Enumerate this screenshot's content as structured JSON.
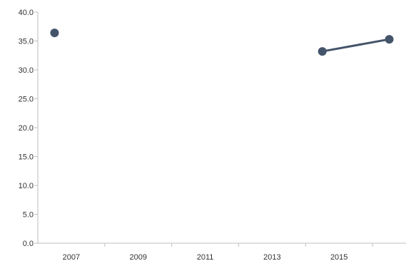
{
  "chart_data": {
    "type": "line",
    "title": "",
    "xlabel": "",
    "ylabel": "",
    "xlim": [
      2006,
      2017
    ],
    "ylim": [
      0,
      40
    ],
    "x_ticks": [
      "2007",
      "2009",
      "2011",
      "2013",
      "2015"
    ],
    "y_ticks": [
      "0.0",
      "5.0",
      "10.0",
      "15.0",
      "20.0",
      "25.0",
      "30.0",
      "35.0",
      "40.0"
    ],
    "grid": false,
    "series": [
      {
        "color": "#44546a",
        "points": [
          {
            "x": 2006.5,
            "y": 36.4
          },
          {
            "x": 2014.5,
            "y": 33.2
          },
          {
            "x": 2016.5,
            "y": 35.3
          }
        ],
        "segments": [
          [
            1,
            2
          ]
        ]
      }
    ]
  }
}
